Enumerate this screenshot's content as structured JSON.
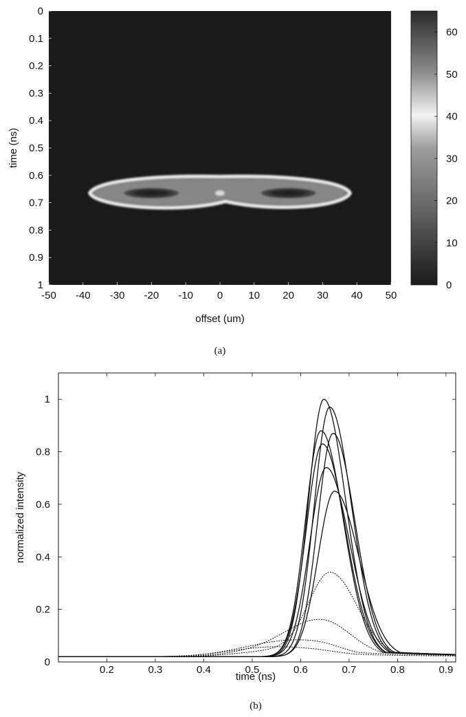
{
  "chart_data": [
    {
      "panel": "a",
      "type": "heatmap",
      "caption": "(a)",
      "xlabel": "offset (um)",
      "ylabel": "time (ns)",
      "xlim": [
        -50,
        50
      ],
      "ylim": [
        0,
        1
      ],
      "y_inverted": true,
      "x_ticks": [
        -50,
        -40,
        -30,
        -20,
        -10,
        0,
        10,
        20,
        30,
        40,
        50
      ],
      "y_ticks": [
        0,
        0.1,
        0.2,
        0.3,
        0.4,
        0.5,
        0.6,
        0.7,
        0.8,
        0.9,
        1
      ],
      "colorbar": {
        "range": [
          0,
          65
        ],
        "ticks": [
          0,
          10,
          20,
          30,
          40,
          50,
          60
        ],
        "colormap": "grayscale"
      },
      "colors": {
        "background": "#1a1a1a",
        "ring": "#e8e8e8",
        "halo": "#9a9a9a"
      },
      "feature": {
        "description_center_time_ns": 0.665,
        "x_extent_um": [
          -38,
          38
        ],
        "top_edge_time_ns": [
          0.6,
          0.625
        ],
        "bottom_edge_time_ns": [
          0.7,
          0.735
        ],
        "hollow_lobes_center_um": [
          -20,
          20
        ],
        "peak_value": 65
      }
    },
    {
      "panel": "b",
      "type": "line",
      "caption": "(b)",
      "xlabel": "time (ns)",
      "ylabel": "normalized intensity",
      "xlim": [
        0.1,
        0.92
      ],
      "ylim": [
        0,
        1.1
      ],
      "x_ticks": [
        0.2,
        0.3,
        0.4,
        0.5,
        0.6,
        0.7,
        0.8,
        0.9
      ],
      "y_ticks": [
        0,
        0.2,
        0.4,
        0.6,
        0.8,
        1
      ],
      "grid": false,
      "baseline": 0.02,
      "series": [
        {
          "peak_time": 0.648,
          "peak": 1.0,
          "rise_width": 0.032,
          "fall_width": 0.045,
          "style": "solid"
        },
        {
          "peak_time": 0.66,
          "peak": 0.97,
          "rise_width": 0.032,
          "fall_width": 0.045,
          "style": "solid"
        },
        {
          "peak_time": 0.642,
          "peak": 0.88,
          "rise_width": 0.032,
          "fall_width": 0.046,
          "style": "solid"
        },
        {
          "peak_time": 0.667,
          "peak": 0.87,
          "rise_width": 0.032,
          "fall_width": 0.045,
          "style": "solid"
        },
        {
          "peak_time": 0.645,
          "peak": 0.83,
          "rise_width": 0.033,
          "fall_width": 0.047,
          "style": "solid"
        },
        {
          "peak_time": 0.653,
          "peak": 0.74,
          "rise_width": 0.034,
          "fall_width": 0.048,
          "style": "solid"
        },
        {
          "peak_time": 0.67,
          "peak": 0.65,
          "rise_width": 0.034,
          "fall_width": 0.05,
          "style": "solid"
        },
        {
          "peak_time": 0.662,
          "peak": 0.33,
          "rise_width": 0.045,
          "fall_width": 0.055,
          "style": "dotted"
        },
        {
          "peak_time": 0.645,
          "peak": 0.15,
          "rise_width": 0.07,
          "fall_width": 0.06,
          "style": "dotted"
        },
        {
          "peak_time": 0.625,
          "peak": 0.07,
          "rise_width": 0.09,
          "fall_width": 0.06,
          "style": "dotted"
        },
        {
          "peak_time": 0.62,
          "peak": 0.04,
          "rise_width": 0.09,
          "fall_width": 0.07,
          "style": "dotted"
        }
      ]
    }
  ]
}
